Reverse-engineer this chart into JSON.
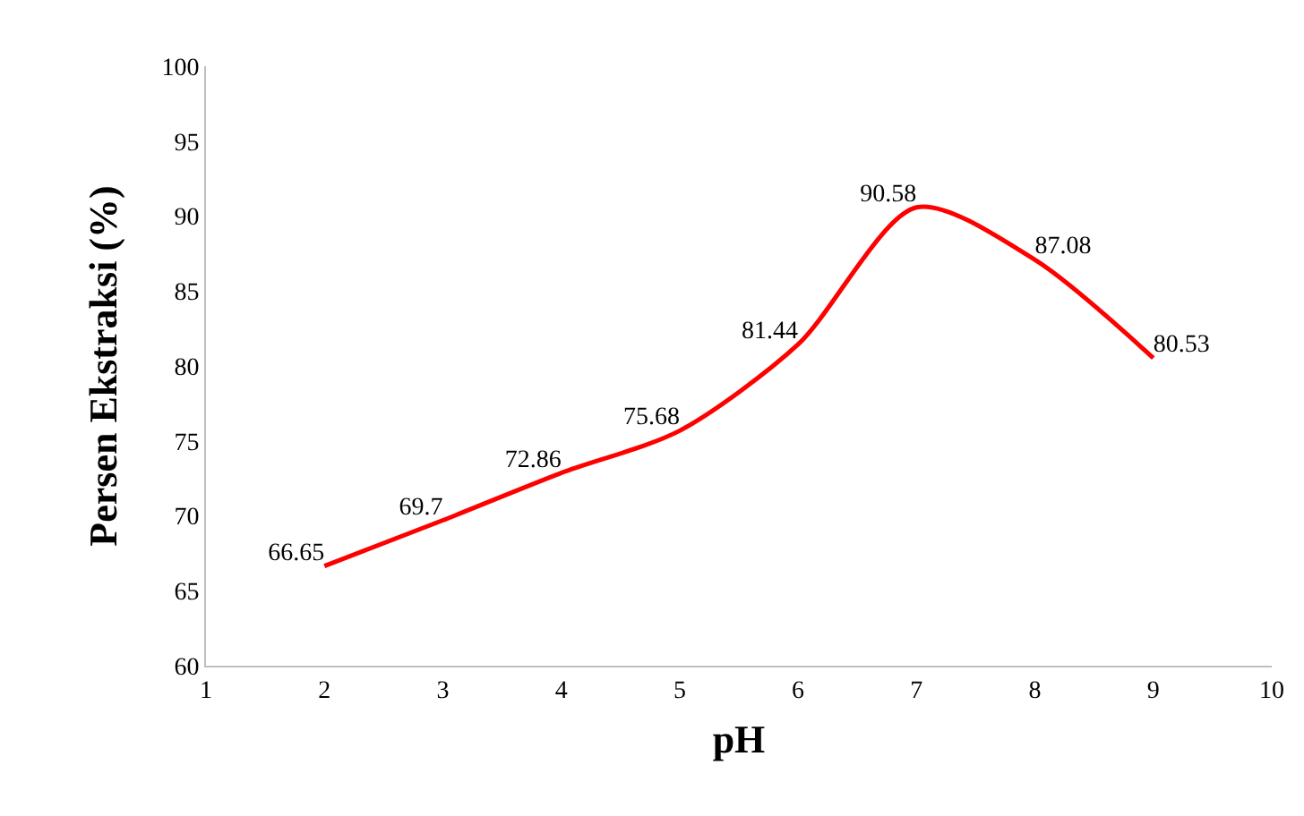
{
  "chart_data": {
    "type": "line",
    "xlabel": "pH",
    "ylabel": "Persen Ekstraksi (%)",
    "x": [
      2,
      3,
      4,
      5,
      6,
      7,
      8,
      9
    ],
    "series": [
      {
        "color": "#ff0000",
        "values": [
          66.65,
          69.7,
          72.86,
          75.68,
          81.44,
          90.58,
          87.08,
          80.53
        ]
      }
    ],
    "xlim": [
      1,
      10
    ],
    "xticks": [
      1,
      2,
      3,
      4,
      5,
      6,
      7,
      8,
      9,
      10
    ],
    "ylim": [
      60,
      100
    ],
    "yticks": [
      60,
      65,
      70,
      75,
      80,
      85,
      90,
      95,
      100
    ],
    "grid": false,
    "marker": "none",
    "line_style": "solid",
    "data_labels": true
  }
}
